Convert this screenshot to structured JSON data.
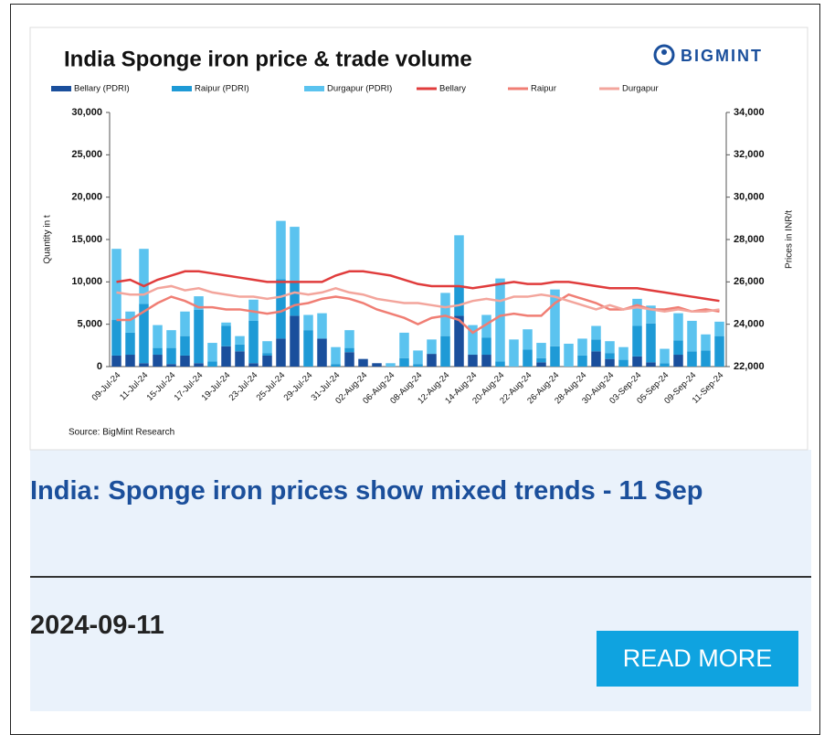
{
  "chart_data": {
    "type": "bar",
    "stacked": true,
    "title": "India Sponge iron price & trade volume",
    "logo": "BIGMINT",
    "ylabel": "Quantity in t",
    "y2label": "Prices in INR/t",
    "source": "Source: BigMint Research",
    "categories": [
      "09-Jul-24",
      null,
      "11-Jul-24",
      null,
      "15-Jul-24",
      null,
      "17-Jul-24",
      null,
      "19-Jul-24",
      null,
      "23-Jul-24",
      null,
      "25-Jul-24",
      null,
      "29-Jul-24",
      null,
      "31-Jul-24",
      null,
      "02-Aug-24",
      null,
      "06-Aug-24",
      null,
      "08-Aug-24",
      null,
      "12-Aug-24",
      null,
      "14-Aug-24",
      null,
      "20-Aug-24",
      null,
      "22-Aug-24",
      null,
      "26-Aug-24",
      null,
      "28-Aug-24",
      null,
      "30-Aug-24",
      null,
      "03-Sep-24",
      null,
      "05-Sep-24",
      null,
      "09-Sep-24",
      null,
      "11-Sep-24"
    ],
    "ylim": [
      0,
      30000
    ],
    "yticks": [
      0,
      {
        "value": 5000,
        "label": "5,000"
      },
      {
        "value": 10000,
        "label": "10,000"
      },
      {
        "value": 15000,
        "label": "15,000"
      },
      {
        "value": 20000,
        "label": "20,000"
      },
      {
        "value": 25000,
        "label": "25,000"
      },
      {
        "value": 30000,
        "label": "30,000"
      }
    ],
    "y2lim": [
      22000,
      34000
    ],
    "y2ticks": [
      {
        "value": 22000,
        "label": "22,000"
      },
      {
        "value": 24000,
        "label": "24,000"
      },
      {
        "value": 26000,
        "label": "26,000"
      },
      {
        "value": 28000,
        "label": "28,000"
      },
      {
        "value": 30000,
        "label": "30,000"
      },
      {
        "value": 32000,
        "label": "32,000"
      },
      {
        "value": 34000,
        "label": "34,000"
      }
    ],
    "series": [
      {
        "name": "Bellary (PDRI)",
        "color": "#1a4f9c",
        "values": [
          1300,
          1400,
          400,
          1400,
          300,
          1300,
          400,
          0,
          2400,
          1800,
          400,
          1300,
          3300,
          6000,
          0,
          3300,
          0,
          1700,
          900,
          400,
          0,
          0,
          0,
          1500,
          0,
          6000,
          1400,
          1400,
          0,
          0,
          0,
          500,
          0,
          0,
          0,
          1800,
          900,
          0,
          1200,
          500,
          0,
          1400,
          0,
          0,
          0
        ]
      },
      {
        "name": "Raipur (PDRI)",
        "color": "#1e9ad6",
        "values": [
          4200,
          2600,
          7000,
          800,
          1900,
          2300,
          6300,
          600,
          2400,
          800,
          5000,
          300,
          7000,
          4000,
          4300,
          0,
          300,
          500,
          0,
          0,
          0,
          1000,
          300,
          0,
          3600,
          3600,
          0,
          2000,
          600,
          0,
          2000,
          500,
          2400,
          0,
          1300,
          1400,
          700,
          800,
          3600,
          4600,
          400,
          1700,
          1800,
          1900,
          3600
        ]
      },
      {
        "name": "Durgapur (PDRI)",
        "color": "#5bc3ef",
        "values": [
          8400,
          2500,
          6500,
          2700,
          2100,
          2900,
          1600,
          2200,
          400,
          1000,
          2500,
          1400,
          6900,
          6500,
          1800,
          3000,
          2000,
          2100,
          0,
          0,
          400,
          3000,
          1600,
          1700,
          5100,
          5900,
          3500,
          2700,
          9800,
          3200,
          2400,
          1800,
          6700,
          2700,
          2000,
          1600,
          1400,
          1500,
          3200,
          2100,
          1700,
          3200,
          3600,
          1900,
          1700
        ]
      },
      {
        "name": "Bellary",
        "type": "line",
        "axis": "y2",
        "color": "#e03c3c",
        "values": [
          26000,
          26100,
          25800,
          26100,
          26300,
          26500,
          26500,
          26400,
          26300,
          26200,
          26100,
          26000,
          26000,
          26000,
          26000,
          26000,
          26300,
          26500,
          26500,
          26400,
          26300,
          26100,
          25900,
          25800,
          25800,
          25800,
          25700,
          25800,
          25900,
          26000,
          25900,
          25900,
          26000,
          26000,
          25900,
          25800,
          25700,
          25700,
          25700,
          25600,
          25500,
          25400,
          25300,
          25200,
          25100
        ]
      },
      {
        "name": "Raipur",
        "type": "line",
        "axis": "y2",
        "color": "#f07e74",
        "values": [
          24200,
          24200,
          24600,
          25000,
          25300,
          25100,
          24800,
          24800,
          24700,
          24700,
          24600,
          24500,
          24600,
          24900,
          25000,
          25200,
          25300,
          25200,
          25000,
          24700,
          24500,
          24300,
          24000,
          24300,
          24400,
          24200,
          23600,
          24000,
          24400,
          24500,
          24400,
          24400,
          25000,
          25400,
          25200,
          25000,
          24700,
          24700,
          24900,
          24700,
          24700,
          24800,
          24600,
          24700,
          24600
        ]
      },
      {
        "name": "Durgapur",
        "type": "line",
        "axis": "y2",
        "color": "#f3a59c",
        "values": [
          25500,
          25400,
          25400,
          25700,
          25800,
          25600,
          25700,
          25500,
          25400,
          25300,
          25300,
          25200,
          25300,
          25500,
          25400,
          25500,
          25700,
          25500,
          25400,
          25200,
          25100,
          25000,
          25000,
          24900,
          24800,
          24900,
          25100,
          25200,
          25100,
          25300,
          25300,
          25400,
          25300,
          25100,
          24900,
          24700,
          24900,
          24700,
          24800,
          24700,
          24600,
          24700,
          24600,
          24600,
          24700
        ]
      }
    ]
  },
  "card": {
    "headline": "India: Sponge iron prices show mixed trends - 11 Sep",
    "date": "2024-09-11",
    "button": "READ MORE"
  }
}
